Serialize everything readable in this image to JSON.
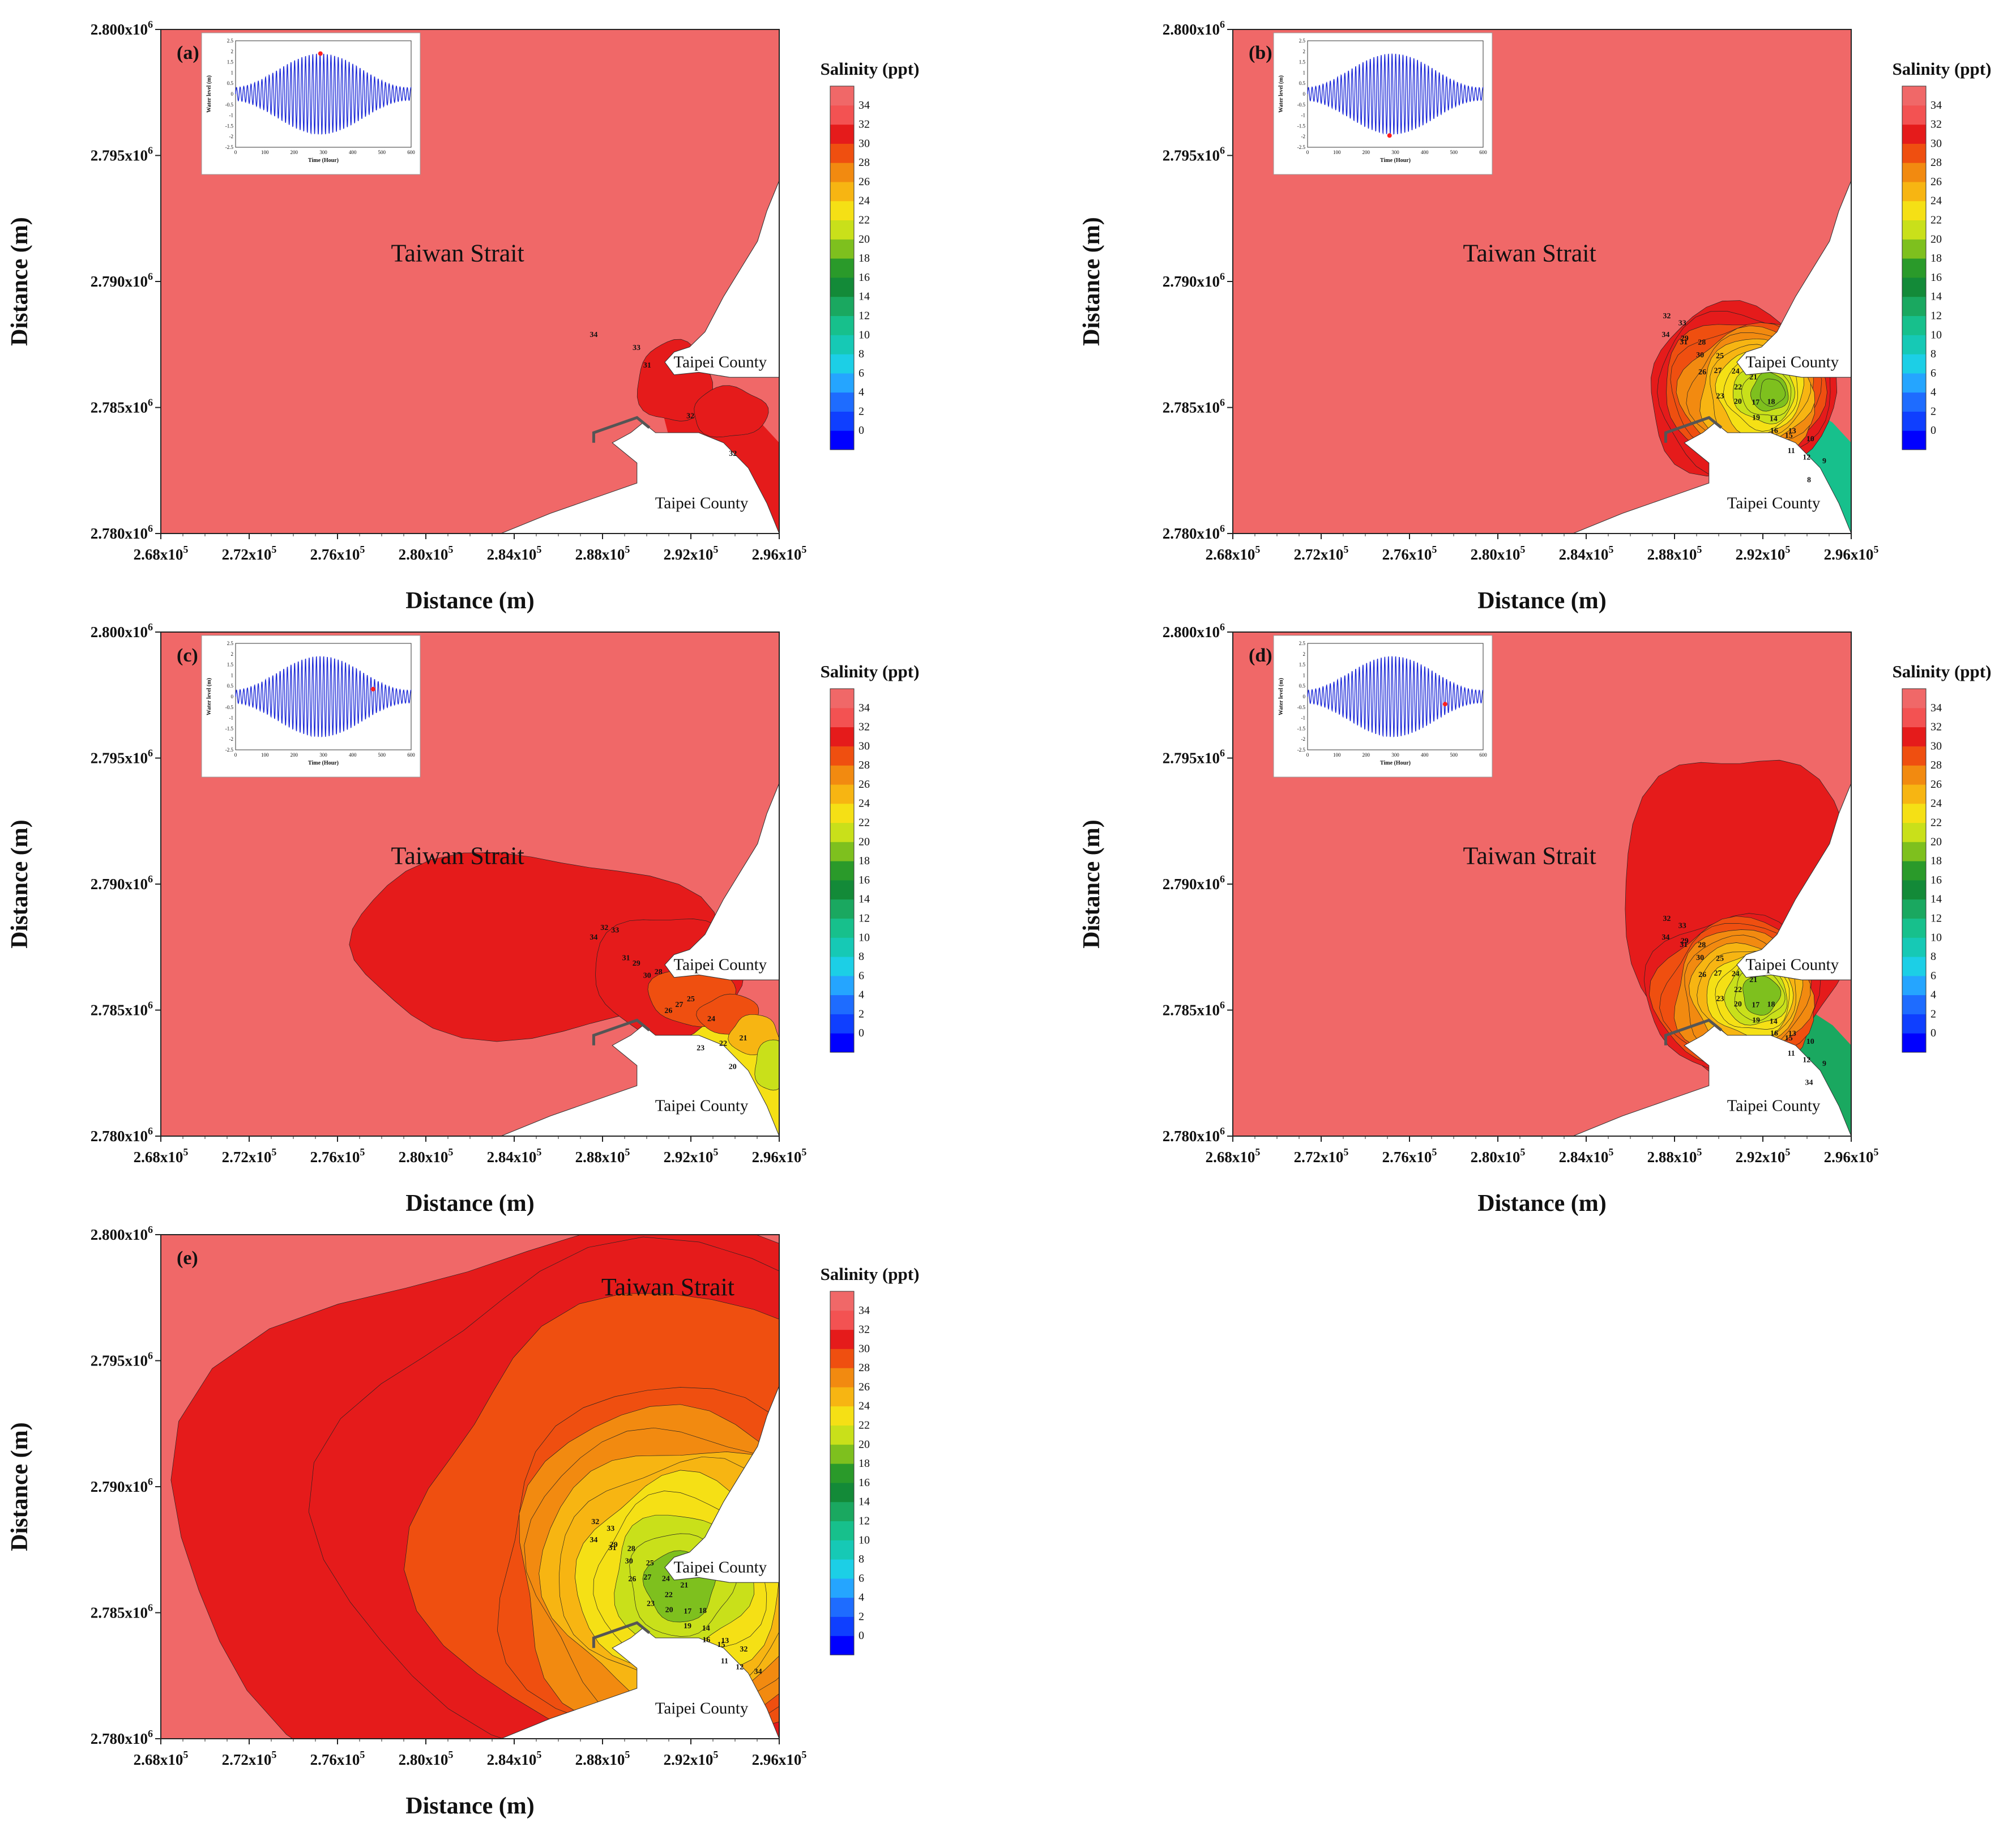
{
  "chart_data": {
    "type": "contour",
    "x_axis_label": "Distance (m)",
    "y_axis_label": "Distance (m)",
    "x_ticks": [
      "2.68x10",
      "2.72x10",
      "2.76x10",
      "2.80x10",
      "2.84x10",
      "2.88x10",
      "2.92x10",
      "2.96x10"
    ],
    "x_tick_exponent": "5",
    "x_range": [
      268000,
      296000
    ],
    "y_ticks": [
      "2.780x10",
      "2.785x10",
      "2.790x10",
      "2.795x10",
      "2.800x10"
    ],
    "y_tick_exponent": "6",
    "y_range": [
      2780000,
      2800000
    ],
    "colorbar": {
      "title": "Salinity (ppt)",
      "levels": [
        0,
        2,
        4,
        6,
        8,
        10,
        12,
        14,
        16,
        18,
        20,
        22,
        24,
        26,
        28,
        30,
        32,
        34
      ],
      "colors": [
        "#0000ff",
        "#0f3fff",
        "#1e6cff",
        "#25a5ff",
        "#1ccfe6",
        "#16c9b5",
        "#17c08c",
        "#1aa860",
        "#138a38",
        "#2a9a2a",
        "#7ec01e",
        "#c9e01a",
        "#f5e015",
        "#f7b512",
        "#f28a10",
        "#ef4f10",
        "#e51b1b",
        "#f35252",
        "#f06868"
      ]
    },
    "places": {
      "strait": "Taiwan Strait",
      "county_north": "Taipei County",
      "county_south": "Taipei County"
    },
    "panels": [
      {
        "id": "a",
        "label": "(a)",
        "inset_marker": "peak",
        "contour_labels": [
          "34",
          "33",
          "31",
          "32",
          "32"
        ]
      },
      {
        "id": "b",
        "label": "(b)",
        "inset_marker": "trough",
        "contour_labels": [
          "34",
          "33",
          "32",
          "31",
          "30",
          "29",
          "28",
          "27",
          "26",
          "25",
          "24",
          "23",
          "22",
          "21",
          "20",
          "19",
          "18",
          "17",
          "16",
          "15",
          "14",
          "13",
          "12",
          "11",
          "10",
          "9",
          "8"
        ]
      },
      {
        "id": "c",
        "label": "(c)",
        "inset_marker": "mid-flood",
        "contour_labels": [
          "34",
          "33",
          "32",
          "31",
          "30",
          "29",
          "28",
          "27",
          "26",
          "25",
          "24",
          "23",
          "22",
          "21",
          "20"
        ]
      },
      {
        "id": "d",
        "label": "(d)",
        "inset_marker": "mid-ebb",
        "contour_labels": [
          "34",
          "33",
          "32",
          "31",
          "30",
          "29",
          "28",
          "27",
          "26",
          "25",
          "24",
          "23",
          "22",
          "21",
          "20",
          "19",
          "18",
          "17",
          "16",
          "15",
          "14",
          "13",
          "12",
          "11",
          "10",
          "9",
          "34"
        ]
      },
      {
        "id": "e",
        "label": "(e)",
        "inset_marker": "none",
        "contour_labels": [
          "34",
          "33",
          "32",
          "31",
          "30",
          "29",
          "28",
          "27",
          "26",
          "25",
          "24",
          "23",
          "22",
          "21",
          "20",
          "19",
          "18",
          "17",
          "16",
          "15",
          "14",
          "13",
          "12",
          "11",
          "32",
          "34"
        ]
      }
    ],
    "inset": {
      "x_label": "Time (Hour)",
      "y_label": "Water level (m)",
      "x_ticks": [
        "0",
        "100",
        "200",
        "300",
        "400",
        "500",
        "600"
      ],
      "y_ticks": [
        "2.5",
        "2",
        "1.5",
        "1",
        "0.5",
        "0",
        "-0.5",
        "-1",
        "-1.5",
        "-2",
        "-2.5"
      ],
      "x_range": [
        0,
        600
      ],
      "y_range": [
        -2.5,
        2.5
      ]
    }
  }
}
